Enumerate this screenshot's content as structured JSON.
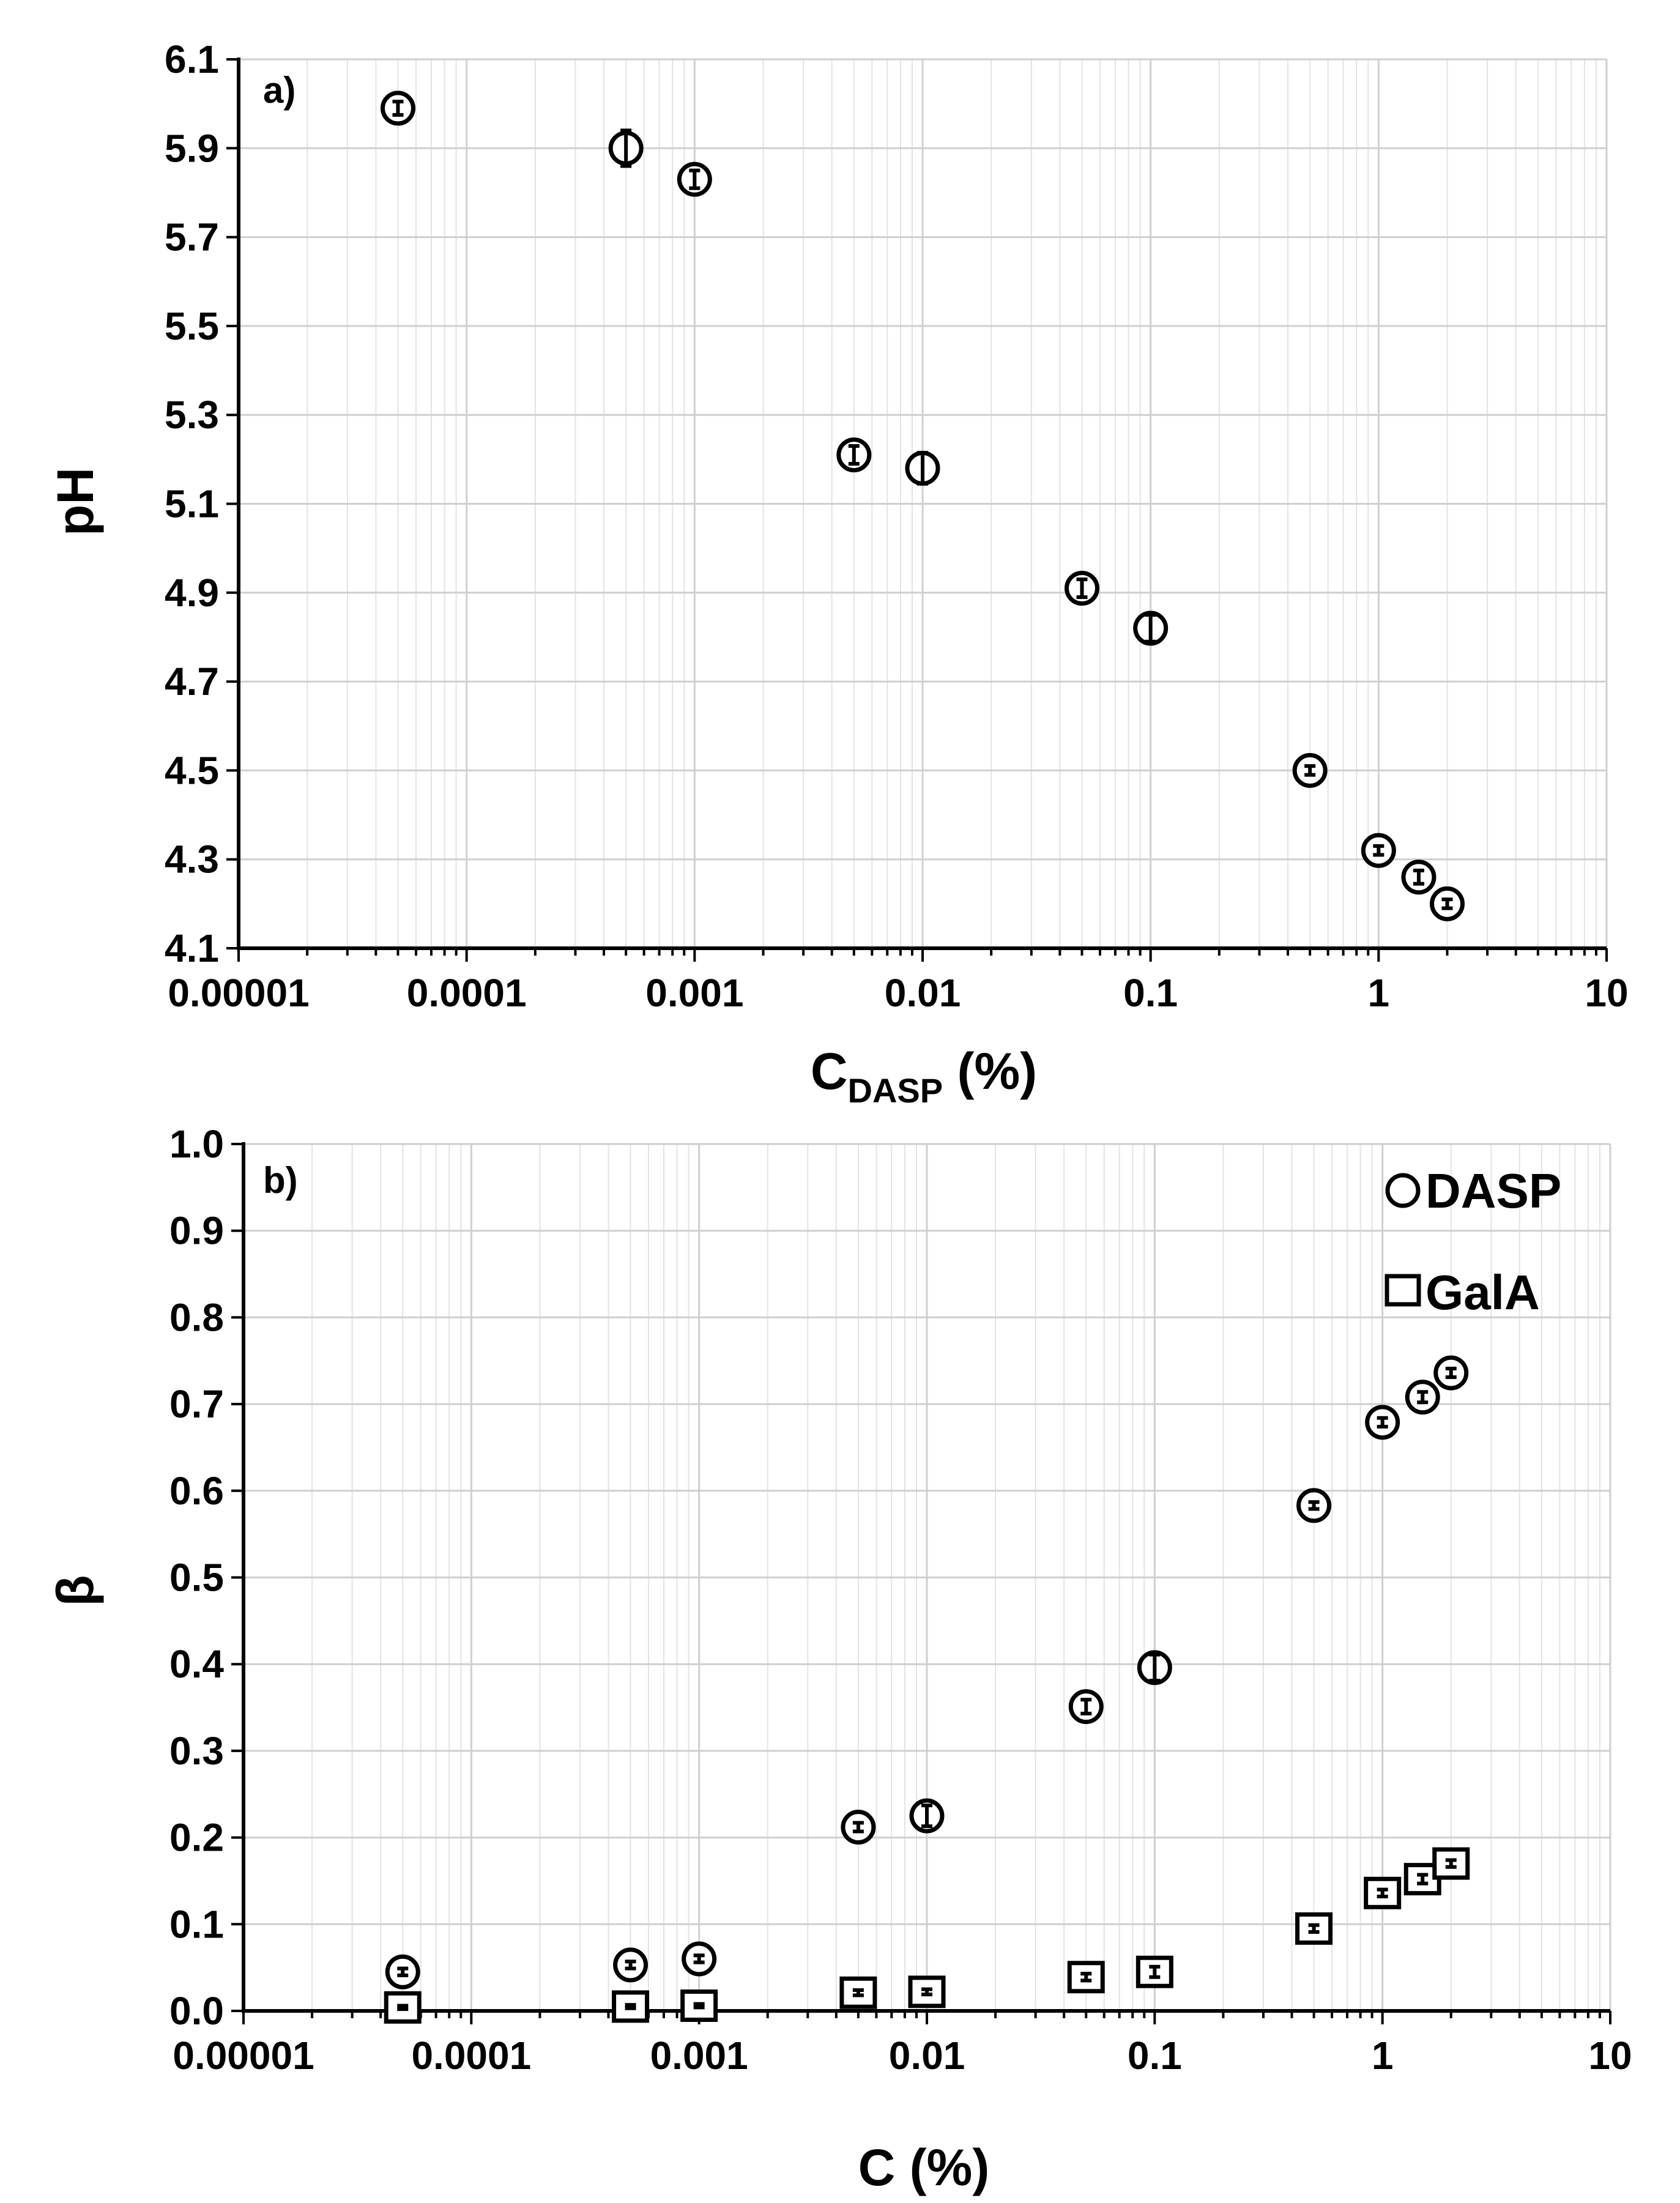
{
  "chart_data": [
    {
      "type": "scatter",
      "panel_label": "a)",
      "xscale": "log",
      "xlabel_main": "C",
      "xlabel_sub": "DASP",
      "xlabel_suffix": " (%)",
      "ylabel": "pH",
      "xlim": [
        1e-05,
        10
      ],
      "ylim": [
        4.1,
        6.1
      ],
      "x_ticks": [
        1e-05,
        0.0001,
        0.001,
        0.01,
        0.1,
        1,
        10
      ],
      "x_tick_labels": [
        "0.00001",
        "0.0001",
        "0.001",
        "0.01",
        "0.1",
        "1",
        "10"
      ],
      "y_ticks": [
        4.1,
        4.3,
        4.5,
        4.7,
        4.9,
        5.1,
        5.3,
        5.5,
        5.7,
        5.9,
        6.1
      ],
      "y_tick_labels": [
        "4.1",
        "4.3",
        "4.5",
        "4.7",
        "4.9",
        "5.1",
        "5.3",
        "5.5",
        "5.7",
        "5.9",
        "6.1"
      ],
      "grid": true,
      "series": [
        {
          "name": "DASP",
          "marker": "circle",
          "x": [
            5e-05,
            0.0005,
            0.001,
            0.005,
            0.01,
            0.05,
            0.1,
            0.5,
            1,
            1.5,
            2
          ],
          "y": [
            5.99,
            5.9,
            5.83,
            5.21,
            5.18,
            4.91,
            4.82,
            4.5,
            4.32,
            4.26,
            4.2
          ],
          "yerr": [
            0.015,
            0.04,
            0.02,
            0.02,
            0.035,
            0.02,
            0.03,
            0.01,
            0.01,
            0.015,
            0.01
          ]
        }
      ]
    },
    {
      "type": "scatter",
      "panel_label": "b)",
      "xscale": "log",
      "xlabel": "C (%)",
      "ylabel": "β",
      "xlim": [
        1e-05,
        10
      ],
      "ylim": [
        0,
        1
      ],
      "x_ticks": [
        1e-05,
        0.0001,
        0.001,
        0.01,
        0.1,
        1,
        10
      ],
      "x_tick_labels": [
        "0.00001",
        "0.0001",
        "0.001",
        "0.01",
        "0.1",
        "1",
        "10"
      ],
      "y_ticks": [
        0,
        0.1,
        0.2,
        0.3,
        0.4,
        0.5,
        0.6,
        0.7,
        0.8,
        0.9,
        1.0
      ],
      "y_tick_labels": [
        "0.0",
        "0.1",
        "0.2",
        "0.3",
        "0.4",
        "0.5",
        "0.6",
        "0.7",
        "0.8",
        "0.9",
        "1.0"
      ],
      "grid": true,
      "legend_position": "top-right",
      "series": [
        {
          "name": "DASP",
          "marker": "circle",
          "x": [
            5e-05,
            0.0005,
            0.001,
            0.005,
            0.01,
            0.05,
            0.1,
            0.5,
            1,
            1.5,
            2
          ],
          "y": [
            0.045,
            0.053,
            0.06,
            0.212,
            0.225,
            0.351,
            0.396,
            0.583,
            0.679,
            0.708,
            0.736
          ],
          "yerr": [
            0.004,
            0.004,
            0.004,
            0.005,
            0.012,
            0.008,
            0.015,
            0.004,
            0.005,
            0.006,
            0.005
          ]
        },
        {
          "name": "GalA",
          "marker": "square",
          "x": [
            5e-05,
            0.0005,
            0.001,
            0.005,
            0.01,
            0.05,
            0.1,
            0.5,
            1,
            1.5,
            2
          ],
          "y": [
            0.004,
            0.005,
            0.006,
            0.021,
            0.022,
            0.039,
            0.045,
            0.095,
            0.136,
            0.152,
            0.17
          ],
          "yerr": [
            0.002,
            0.002,
            0.002,
            0.003,
            0.003,
            0.004,
            0.006,
            0.004,
            0.004,
            0.005,
            0.004
          ]
        }
      ]
    }
  ]
}
